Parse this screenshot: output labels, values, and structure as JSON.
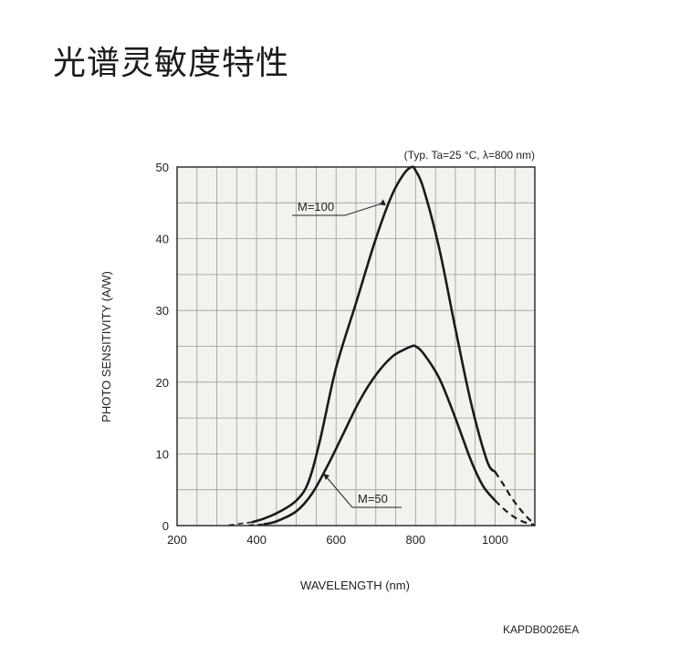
{
  "page": {
    "title": "光谱灵敏度特性",
    "figure_code": "KAPDB0026EA"
  },
  "chart_data": {
    "type": "line",
    "title": "",
    "condition": "(Typ. Ta=25 °C, λ=800 nm)",
    "xlabel": "WAVELENGTH (nm)",
    "ylabel": "PHOTO SENSITIVITY (A/W)",
    "xlim": [
      200,
      1100
    ],
    "ylim": [
      0,
      50
    ],
    "xticks": [
      200,
      400,
      600,
      800,
      1000
    ],
    "yticks": [
      0,
      10,
      20,
      30,
      40,
      50
    ],
    "grid": true,
    "series": [
      {
        "name": "M=100",
        "x": [
          390,
          420,
          460,
          500,
          530,
          560,
          600,
          650,
          700,
          740,
          770,
          790,
          800,
          820,
          860,
          900,
          940,
          980,
          1000
        ],
        "y": [
          0.5,
          1.0,
          2.0,
          3.5,
          6.0,
          12.0,
          22.0,
          31.0,
          40.0,
          46.0,
          49.0,
          50.0,
          49.5,
          47.0,
          38.5,
          27.5,
          17.0,
          9.0,
          7.5
        ],
        "dashed_x": [
          1000,
          1020,
          1040,
          1060,
          1080,
          1100
        ],
        "dashed_y": [
          7.5,
          5.8,
          4.0,
          2.5,
          1.2,
          0.2
        ],
        "label_x": 730,
        "label_y": 44.5
      },
      {
        "name": "M=50",
        "x": [
          420,
          450,
          500,
          540,
          580,
          620,
          660,
          700,
          740,
          770,
          790,
          800,
          820,
          860,
          900,
          940,
          970,
          1000
        ],
        "y": [
          0.2,
          0.6,
          2.0,
          4.5,
          8.5,
          13.0,
          17.5,
          21.0,
          23.5,
          24.5,
          25.0,
          25.0,
          24.0,
          20.5,
          15.0,
          9.0,
          5.5,
          3.5
        ],
        "dashed_x": [
          1000,
          1020,
          1040,
          1060,
          1080,
          1100
        ],
        "dashed_y": [
          3.5,
          2.4,
          1.5,
          0.8,
          0.35,
          0.1
        ],
        "label_x": 760,
        "label_y": 4.0
      }
    ],
    "leader_dashes": [
      {
        "x": [
          330,
          390
        ],
        "y": [
          0.05,
          0.5
        ]
      },
      {
        "x": [
          380,
          420
        ],
        "y": [
          0.05,
          0.2
        ]
      }
    ],
    "labels": [
      "M=100",
      "M=50"
    ]
  }
}
